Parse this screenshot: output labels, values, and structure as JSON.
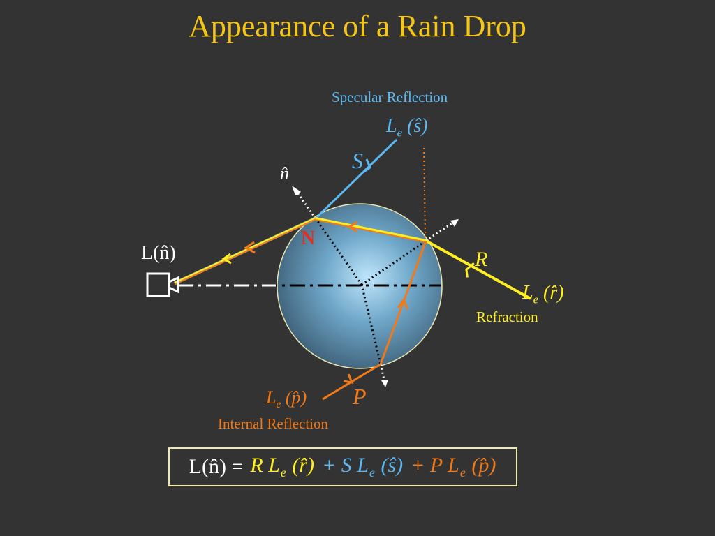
{
  "title": "Appearance of a Rain Drop",
  "labels": {
    "specular": "Specular Reflection",
    "refraction": "Refraction",
    "internal": "Internal Reflection",
    "S": "S",
    "R": "R",
    "P": "P",
    "N": "N",
    "n_hat": "n̂",
    "L_n": "L(n̂)",
    "Le_s": {
      "L": "L",
      "e": "e",
      "arg": "(ŝ)"
    },
    "Le_r": {
      "L": "L",
      "e": "e",
      "arg": "(r̂)"
    },
    "Le_p": {
      "L": "L",
      "e": "e",
      "arg": "(p̂)"
    }
  },
  "formula": {
    "lhs": "L(n̂) =",
    "R_term": "R L",
    "R_arg": "(r̂)",
    "S_term": "+ S L",
    "S_arg": "(ŝ)",
    "P_term": "+ P L",
    "P_arg": "(p̂)",
    "sub_e": "e"
  },
  "colors": {
    "title": "#f5c518",
    "specular": "#5bb8f0",
    "refraction": "#ffee22",
    "internal": "#f07a1a",
    "normal_label": "#e03020",
    "text": "#ffffff"
  }
}
